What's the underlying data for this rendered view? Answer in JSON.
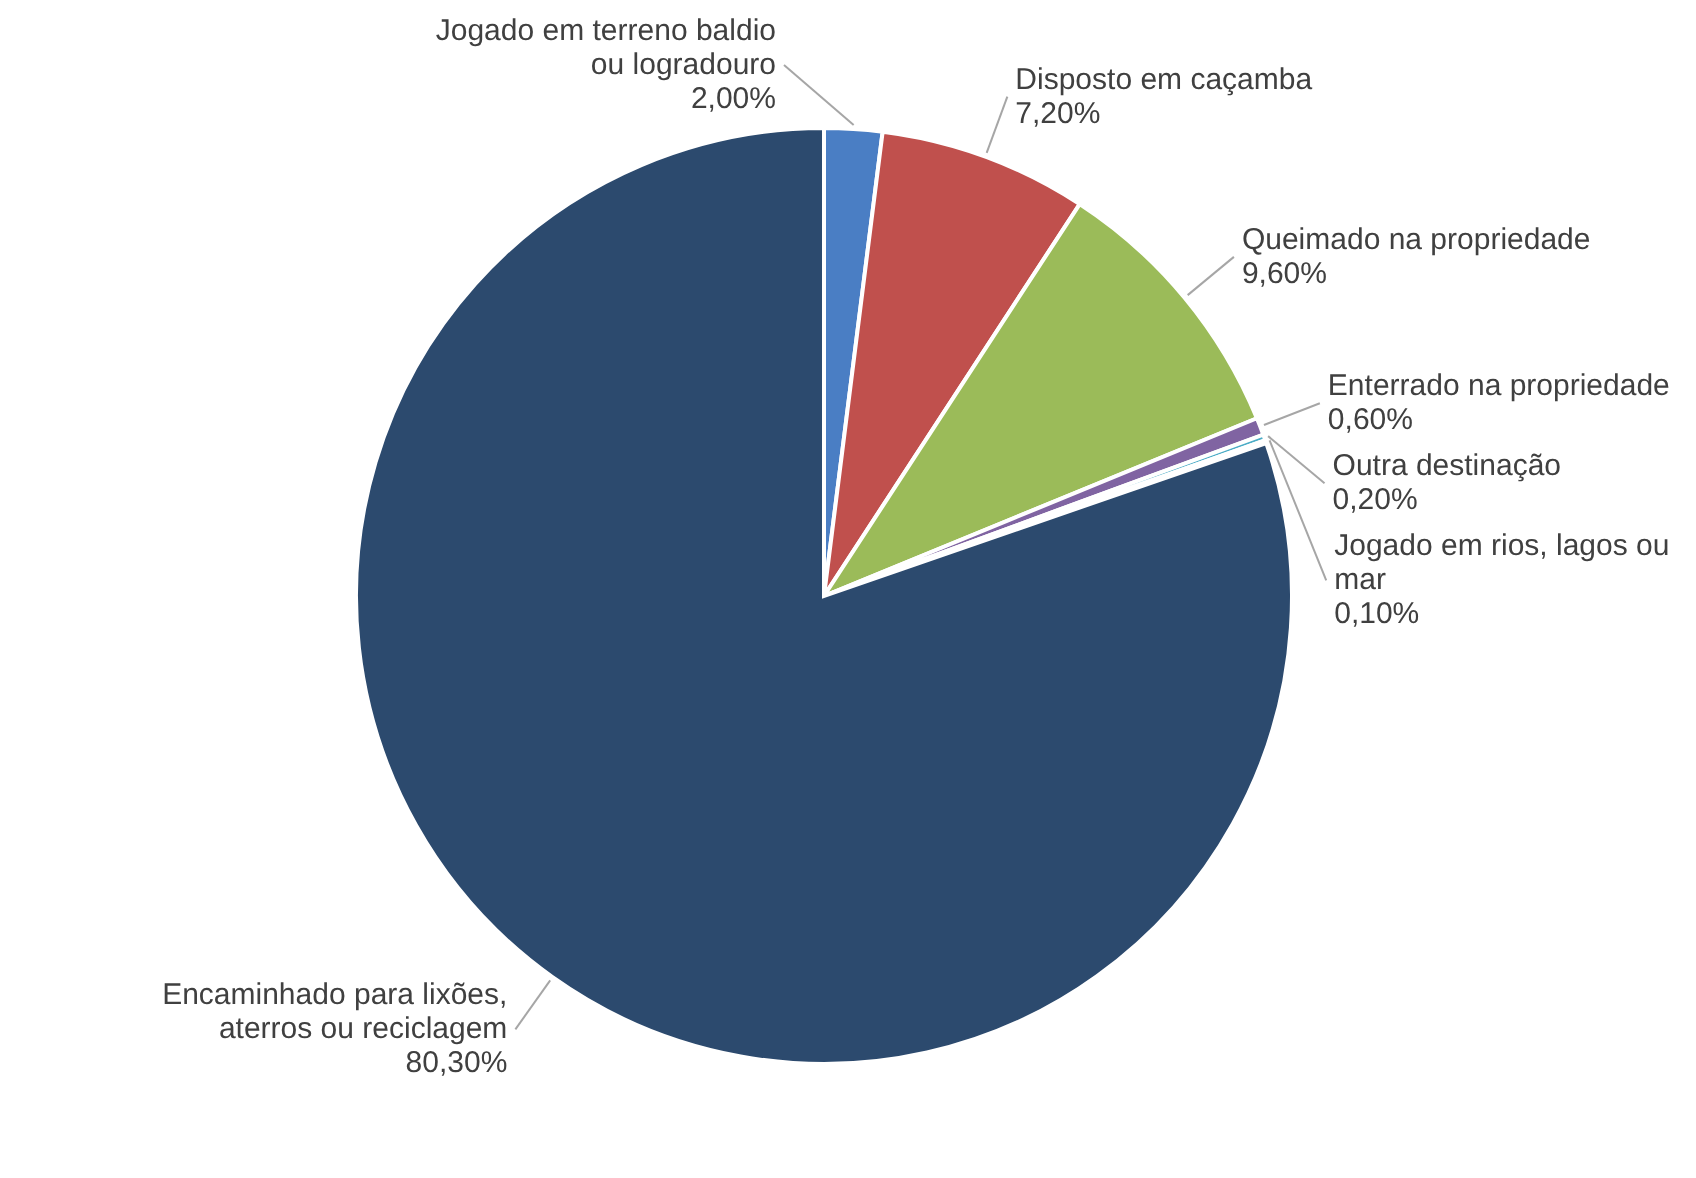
{
  "chart_data": {
    "type": "pie",
    "categories": [
      "Jogado em terreno baldio ou logradouro",
      "Disposto em caçamba",
      "Queimado na propriedade",
      "Enterrado na propriedade",
      "Outra destinação",
      "Jogado em rios, lagos ou mar",
      "Encaminhado para lixões, aterros ou reciclagem"
    ],
    "values": [
      2.0,
      7.2,
      9.6,
      0.6,
      0.2,
      0.1,
      80.3
    ],
    "value_labels": [
      "2,00%",
      "7,20%",
      "9,60%",
      "0,60%",
      "0,20%",
      "0,10%",
      "80,30%"
    ],
    "colors": [
      "#4a7ec4",
      "#c0504d",
      "#9bbb59",
      "#8064a2",
      "#4bacc6",
      "#f79646",
      "#2c4a6e"
    ]
  }
}
